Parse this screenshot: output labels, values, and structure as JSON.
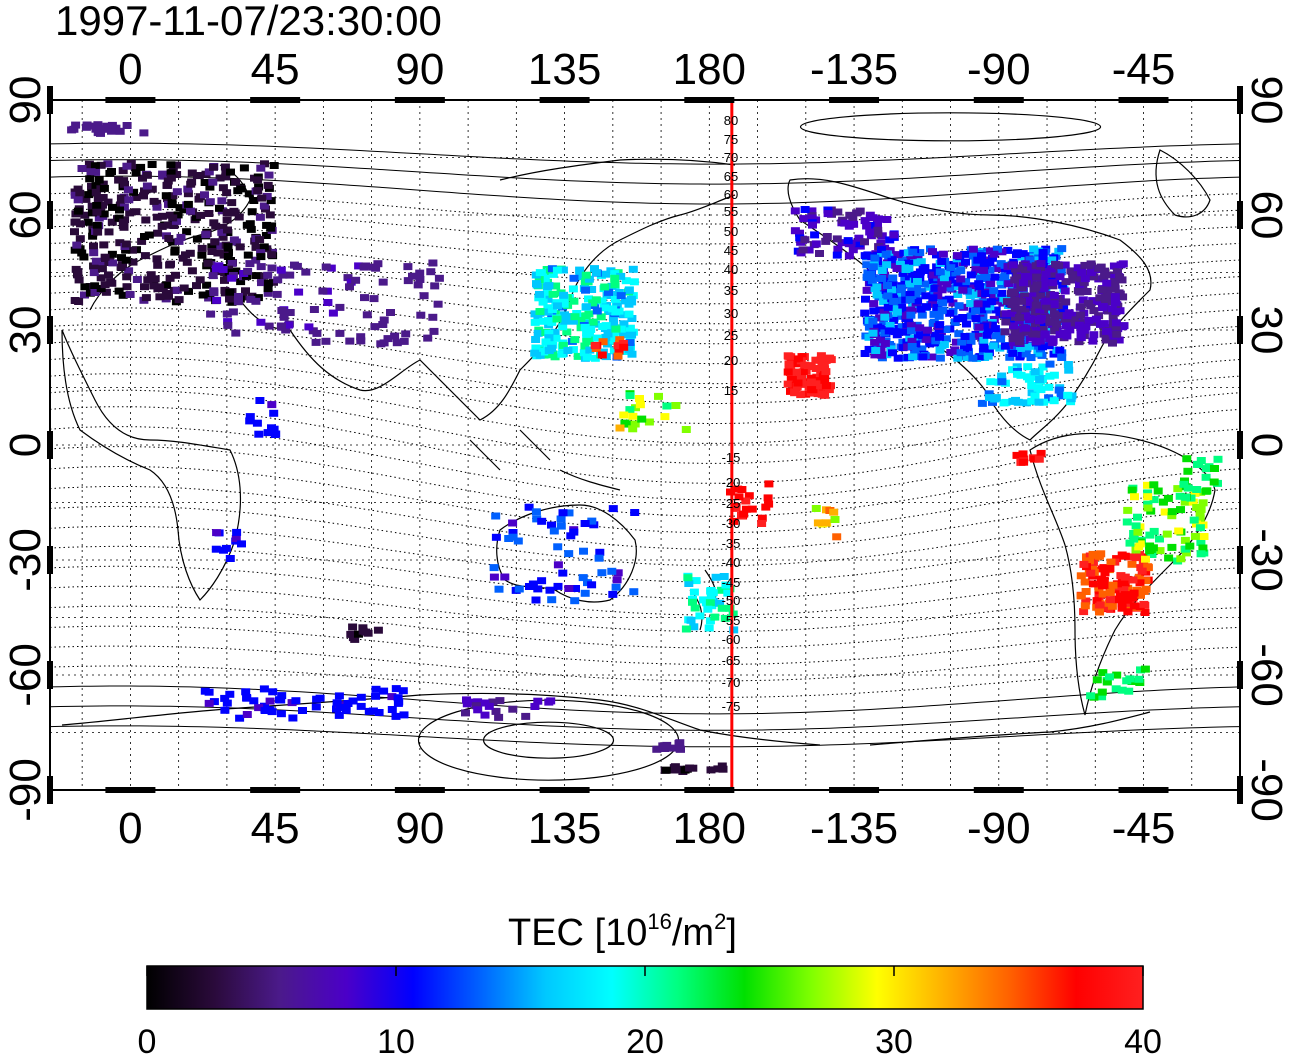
{
  "title": "1997-11-07/23:30:00",
  "map": {
    "lon_ticks_top": [
      "0",
      "45",
      "90",
      "135",
      "180",
      "-135",
      "-90",
      "-45"
    ],
    "lon_ticks_bottom": [
      "0",
      "45",
      "90",
      "135",
      "180",
      "-135",
      "-90",
      "-45"
    ],
    "lat_ticks_left": [
      "90",
      "60",
      "30",
      "0",
      "-30",
      "-60",
      "-90"
    ],
    "lat_ticks_right": [
      "90",
      "60",
      "30",
      "0",
      "-30",
      "-60",
      "-90"
    ],
    "lon_range": [
      -25,
      345
    ],
    "lat_range": [
      -90,
      90
    ],
    "terminator_longitude": 187,
    "terminator_color": "#ff0000",
    "contour_labels": [
      "80",
      "75",
      "70",
      "65",
      "60",
      "55",
      "50",
      "45",
      "40",
      "35",
      "30",
      "25",
      "20",
      "15",
      "-15",
      "-20",
      "-25",
      "-30",
      "-35",
      "-40",
      "-45",
      "-50",
      "-55",
      "-60",
      "-65",
      "-70",
      "-75"
    ]
  },
  "colorbar": {
    "label_main": "TEC  [10",
    "label_exp": "16",
    "label_mid": "/m",
    "label_exp2": "2",
    "label_end": "]",
    "ticks": [
      "0",
      "10",
      "20",
      "30",
      "40"
    ],
    "range": [
      0,
      40
    ],
    "colors": [
      "#000000",
      "#2a0a3a",
      "#4b1a8a",
      "#4b00c8",
      "#0000ff",
      "#0060ff",
      "#00c8ff",
      "#00ffff",
      "#00ff80",
      "#00e000",
      "#80ff00",
      "#ffff00",
      "#ffb000",
      "#ff6000",
      "#ff0000",
      "#ff2020"
    ]
  }
}
